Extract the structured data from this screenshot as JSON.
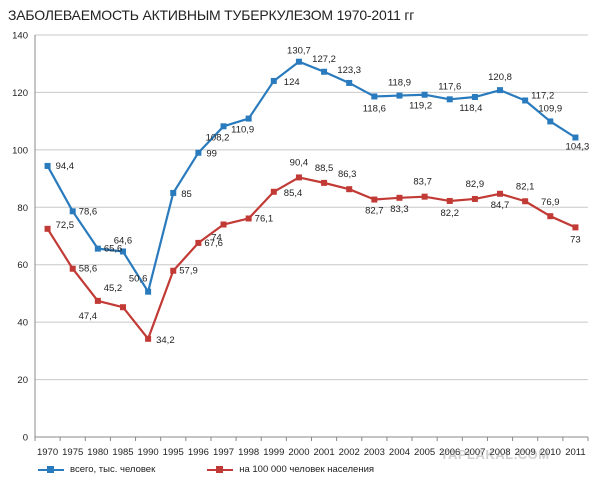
{
  "colors": {
    "series1": "#2a7bbd",
    "series2": "#c23a35",
    "grid": "#c8c8c8",
    "axis": "#888888"
  },
  "watermark": "YAPLAKAL.COM",
  "chart_data": {
    "type": "line",
    "title": "ЗАБОЛЕВАЕМОСТЬ АКТИВНЫМ ТУБЕРКУЛЕЗОМ 1970-2011 гг",
    "xlabel": "",
    "ylabel": "",
    "categories": [
      "1970",
      "1975",
      "1980",
      "1985",
      "1990",
      "1995",
      "1996",
      "1997",
      "1998",
      "1999",
      "2000",
      "2001",
      "2002",
      "2003",
      "2004",
      "2005",
      "2006",
      "2007",
      "2008",
      "2009",
      "2010",
      "2011"
    ],
    "ylim": [
      0,
      140
    ],
    "yticks": [
      0,
      20,
      40,
      60,
      80,
      100,
      120,
      140
    ],
    "grid": true,
    "legend_position": "bottom",
    "series": [
      {
        "name": "всего, тыс. человек",
        "color_key": "series1",
        "values": [
          94.4,
          78.6,
          65.6,
          64.6,
          50.6,
          85,
          99,
          108.2,
          110.9,
          124,
          130.7,
          127.2,
          123.3,
          118.6,
          118.9,
          119.2,
          117.6,
          118.4,
          120.8,
          117.2,
          109.9,
          104.3
        ],
        "labels": [
          "94,4",
          "78,6",
          "65,6",
          "64,6",
          "50,6",
          "85",
          "99",
          "108,2",
          "110,9",
          "124",
          "130,7",
          "127,2",
          "123,3",
          "118,6",
          "118,9",
          "119,2",
          "117,6",
          "118,4",
          "120,8",
          "117,2",
          "109,9",
          "104,3"
        ]
      },
      {
        "name": "на 100 000 человек населения",
        "color_key": "series2",
        "values": [
          72.5,
          58.6,
          47.4,
          45.2,
          34.2,
          57.9,
          67.6,
          74,
          76.1,
          85.4,
          90.4,
          88.5,
          86.3,
          82.7,
          83.3,
          83.7,
          82.2,
          82.9,
          84.7,
          82.1,
          76.9,
          73
        ],
        "labels": [
          "72,5",
          "58,6",
          "47,4",
          "45,2",
          "34,2",
          "57,9",
          "67,6",
          "74",
          "76,1",
          "85,4",
          "90,4",
          "88,5",
          "86,3",
          "82,7",
          "83,3",
          "83,7",
          "82,2",
          "82,9",
          "84,7",
          "82,1",
          "76,9",
          "73"
        ]
      }
    ]
  }
}
